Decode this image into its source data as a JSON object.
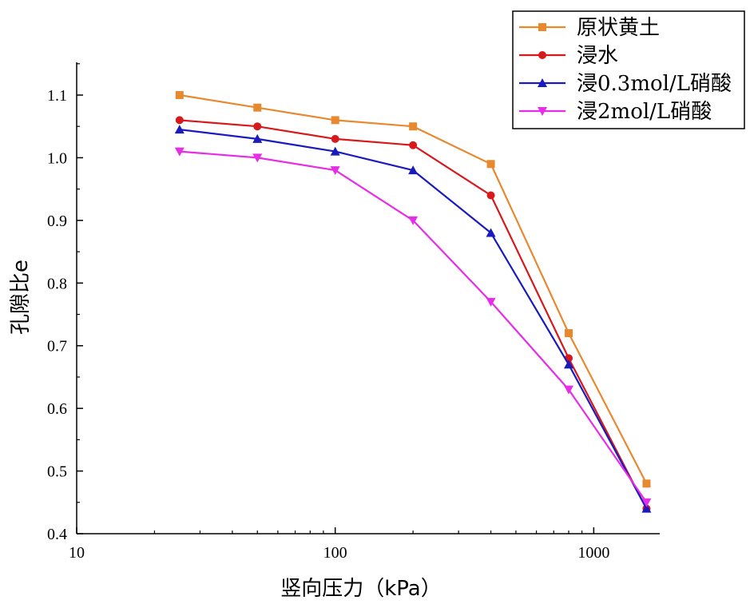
{
  "chart_data": {
    "type": "line",
    "xscale": "log",
    "xlabel": "竖向压力（kPa）",
    "ylabel": "孔隙比e",
    "xlim": [
      10,
      1800
    ],
    "ylim": [
      0.4,
      1.15
    ],
    "xticks": [
      10,
      100,
      1000
    ],
    "xtick_labels": [
      "10",
      "100",
      "1000"
    ],
    "yticks": [
      0.4,
      0.5,
      0.6,
      0.7,
      0.8,
      0.9,
      1.0,
      1.1
    ],
    "ytick_labels": [
      "0.4",
      "0.5",
      "0.6",
      "0.7",
      "0.8",
      "0.9",
      "1.0",
      "1.1"
    ],
    "x": [
      25,
      50,
      100,
      200,
      400,
      800,
      1600
    ],
    "legend_position": "top-right",
    "series": [
      {
        "name": "原状黄土",
        "color": "#E8892F",
        "marker": "square",
        "values": [
          1.1,
          1.08,
          1.06,
          1.05,
          0.99,
          0.72,
          0.48
        ]
      },
      {
        "name": "浸水",
        "color": "#D7191C",
        "marker": "circle",
        "values": [
          1.06,
          1.05,
          1.03,
          1.02,
          0.94,
          0.68,
          0.44
        ]
      },
      {
        "name": "浸0.3mol/L硝酸",
        "color": "#1A1ABF",
        "marker": "triangle-up",
        "values": [
          1.045,
          1.03,
          1.01,
          0.98,
          0.88,
          0.67,
          0.44
        ]
      },
      {
        "name": "浸2mol/L硝酸",
        "color": "#E62EE6",
        "marker": "triangle-down",
        "values": [
          1.01,
          1.0,
          0.98,
          0.9,
          0.77,
          0.63,
          0.45
        ]
      }
    ]
  }
}
